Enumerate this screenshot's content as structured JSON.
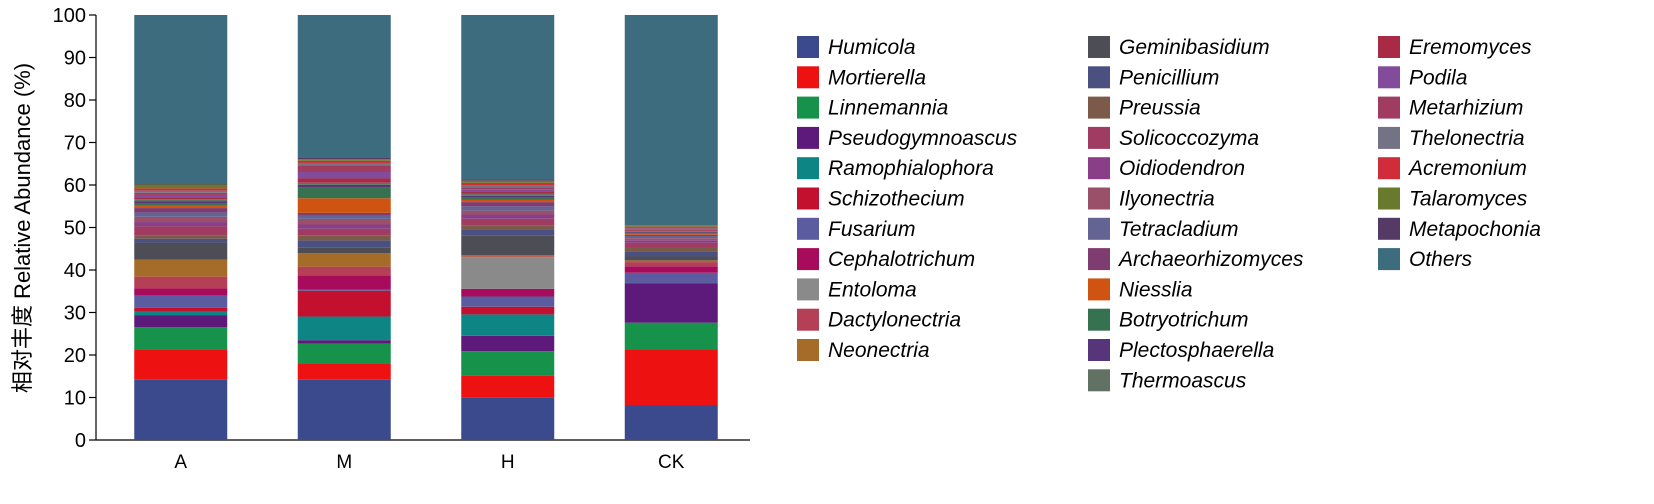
{
  "chart_data": {
    "type": "bar",
    "stacked": true,
    "xlabel": "",
    "ylabel": "相对丰度 Relative Abundance (%)",
    "ylim": [
      0,
      100
    ],
    "yticks": [
      0,
      10,
      20,
      30,
      40,
      50,
      60,
      70,
      80,
      90,
      100
    ],
    "categories": [
      "A",
      "M",
      "H",
      "CK"
    ],
    "legend_position": "right",
    "series": [
      {
        "name": "Humicola",
        "color": "#3A4A8C",
        "values": [
          13.9,
          14.0,
          10.0,
          8.2
        ]
      },
      {
        "name": "Mortierella",
        "color": "#EE1111",
        "values": [
          6.9,
          3.8,
          5.0,
          13.1
        ]
      },
      {
        "name": "Linnemannia",
        "color": "#16924A",
        "values": [
          5.0,
          4.6,
          5.8,
          6.2
        ]
      },
      {
        "name": "Pseudogymnoascus",
        "color": "#5E1A7A",
        "values": [
          2.8,
          0.8,
          3.6,
          9.2
        ]
      },
      {
        "name": "Ramophialophora",
        "color": "#0E8585",
        "values": [
          0.8,
          5.5,
          5.0,
          0.0
        ]
      },
      {
        "name": "Schizothecium",
        "color": "#C2102E",
        "values": [
          0.9,
          6.0,
          1.8,
          0.1
        ]
      },
      {
        "name": "Fusarium",
        "color": "#5B5BA0",
        "values": [
          2.8,
          0.3,
          2.4,
          2.4
        ]
      },
      {
        "name": "Cephalotrichum",
        "color": "#A80A5C",
        "values": [
          1.6,
          3.3,
          1.8,
          1.5
        ]
      },
      {
        "name": "Entoloma",
        "color": "#8A8A8A",
        "values": [
          0.0,
          0.0,
          7.4,
          0.0
        ]
      },
      {
        "name": "Dactylonectria",
        "color": "#B54055",
        "values": [
          2.7,
          2.0,
          0.2,
          1.0
        ]
      },
      {
        "name": "Neonectria",
        "color": "#A46C28",
        "values": [
          3.9,
          3.1,
          0.3,
          0.4
        ]
      },
      {
        "name": "Geminibasidium",
        "color": "#4D4D55",
        "values": [
          3.9,
          1.4,
          4.5,
          0.9
        ]
      },
      {
        "name": "Penicillium",
        "color": "#4A5080",
        "values": [
          0.9,
          1.6,
          1.5,
          1.2
        ]
      },
      {
        "name": "Preussia",
        "color": "#7C5A4A",
        "values": [
          0.8,
          1.2,
          1.0,
          0.8
        ]
      },
      {
        "name": "Solicoccozyma",
        "color": "#A03C62",
        "values": [
          2.0,
          1.5,
          1.5,
          1.2
        ]
      },
      {
        "name": "Oidiodendron",
        "color": "#8A3E88",
        "values": [
          1.0,
          1.0,
          1.0,
          0.6
        ]
      },
      {
        "name": "Ilyonectria",
        "color": "#9A5068",
        "values": [
          1.2,
          1.3,
          0.9,
          0.5
        ]
      },
      {
        "name": "Tetracladium",
        "color": "#646494",
        "values": [
          1.0,
          0.8,
          1.0,
          0.5
        ]
      },
      {
        "name": "Archaeorhizomyces",
        "color": "#7E3C70",
        "values": [
          1.0,
          0.6,
          1.0,
          0.3
        ]
      },
      {
        "name": "Niesslia",
        "color": "#CF5412",
        "values": [
          0.5,
          3.4,
          0.5,
          0.3
        ]
      },
      {
        "name": "Botryotrichum",
        "color": "#367250",
        "values": [
          0.5,
          2.6,
          0.5,
          0.2
        ]
      },
      {
        "name": "Plectosphaerella",
        "color": "#56357A",
        "values": [
          0.5,
          0.5,
          0.5,
          0.2
        ]
      },
      {
        "name": "Thermoascus",
        "color": "#617265",
        "values": [
          0.5,
          0.5,
          0.5,
          0.2
        ]
      },
      {
        "name": "Eremomyces",
        "color": "#A82A44",
        "values": [
          0.5,
          1.0,
          0.5,
          0.2
        ]
      },
      {
        "name": "Podila",
        "color": "#824C9A",
        "values": [
          0.5,
          1.5,
          0.5,
          0.2
        ]
      },
      {
        "name": "Metarhizium",
        "color": "#A03C60",
        "values": [
          0.5,
          1.5,
          0.5,
          0.2
        ]
      },
      {
        "name": "Thelonectria",
        "color": "#737385",
        "values": [
          0.5,
          0.6,
          0.5,
          0.2
        ]
      },
      {
        "name": "Acremonium",
        "color": "#D02C3A",
        "values": [
          0.5,
          0.5,
          0.5,
          0.2
        ]
      },
      {
        "name": "Talaromyces",
        "color": "#6A7A2C",
        "values": [
          0.9,
          0.4,
          0.5,
          0.2
        ]
      },
      {
        "name": "Metapochonia",
        "color": "#563A66",
        "values": [
          0.3,
          0.4,
          0.3,
          0.1
        ]
      },
      {
        "name": "Others",
        "color": "#3D6C7E",
        "values": [
          38.5,
          33.1,
          38.5,
          49.3
        ]
      }
    ]
  }
}
